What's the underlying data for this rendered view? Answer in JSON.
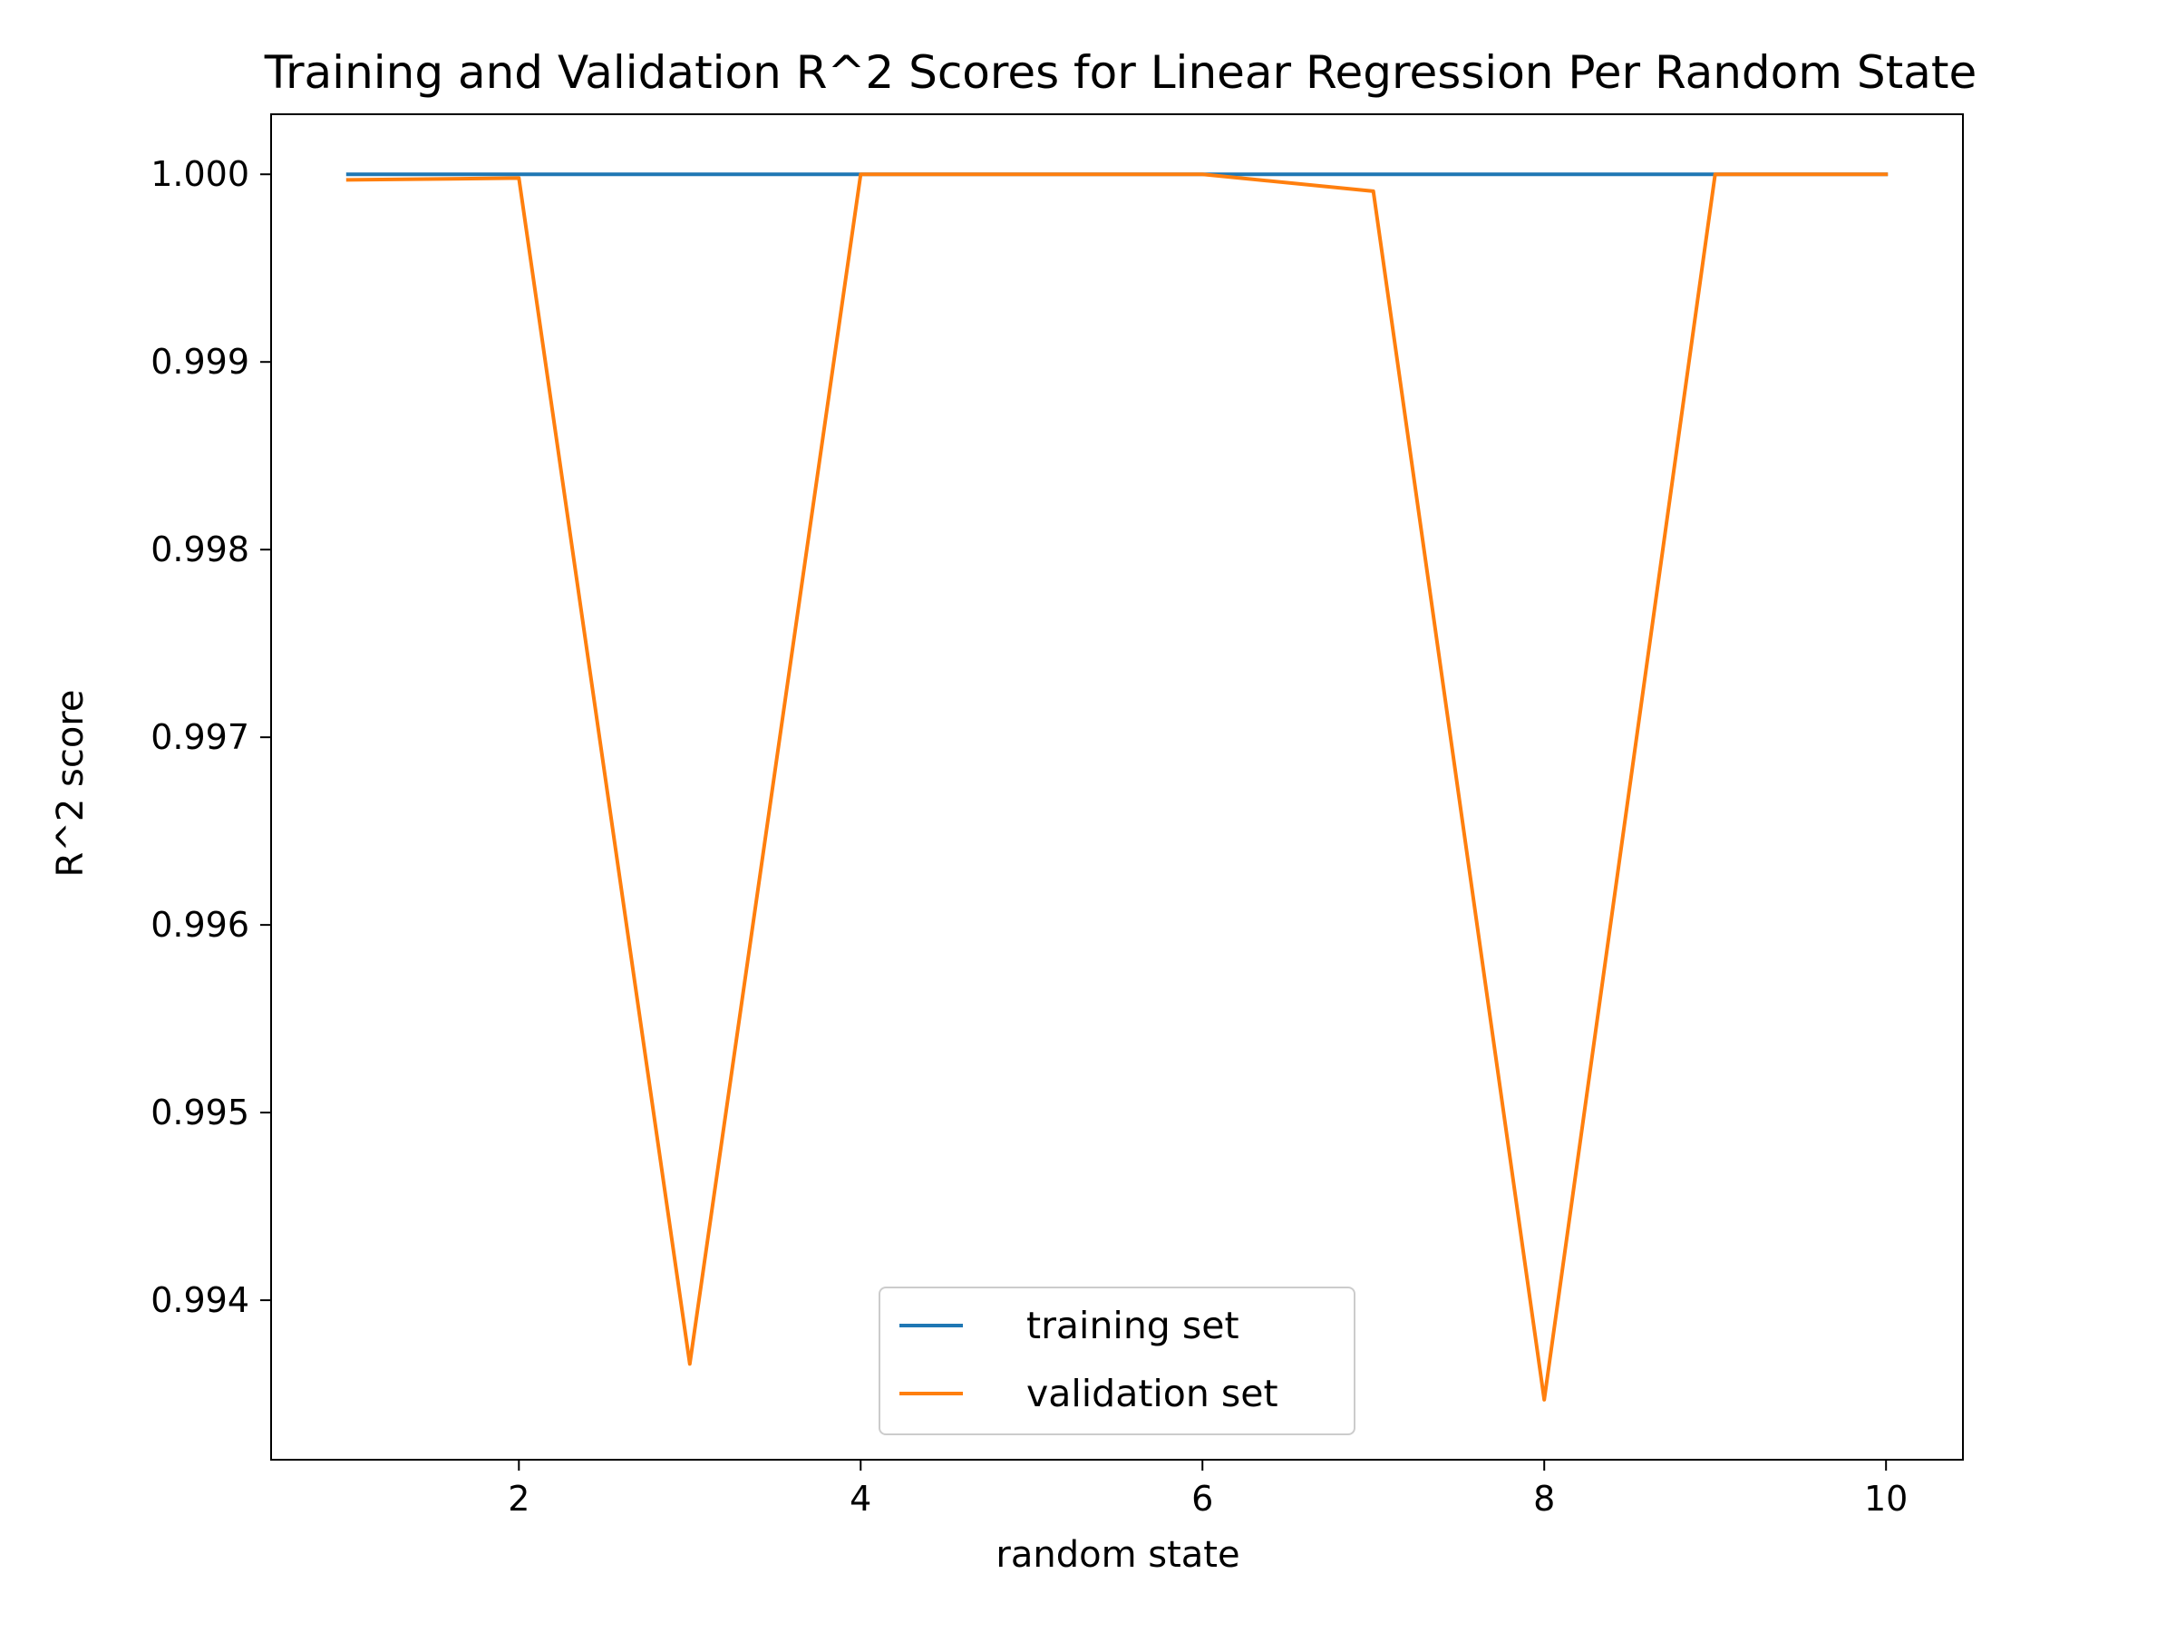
{
  "chart_data": {
    "type": "line",
    "title": "Training and Validation R^2 Scores for Linear Regression Per Random State",
    "xlabel": "random state",
    "ylabel": "R^2 score",
    "x": [
      1,
      2,
      3,
      4,
      5,
      6,
      7,
      8,
      9,
      10
    ],
    "xlim": [
      0.55,
      10.45
    ],
    "ylim": [
      0.99315,
      1.00032
    ],
    "xticks": [
      2,
      4,
      6,
      8,
      10
    ],
    "xtick_labels": [
      "2",
      "4",
      "6",
      "8",
      "10"
    ],
    "yticks": [
      0.994,
      0.995,
      0.996,
      0.997,
      0.998,
      0.999,
      1.0
    ],
    "ytick_labels": [
      "0.994",
      "0.995",
      "0.996",
      "0.997",
      "0.998",
      "0.999",
      "1.000"
    ],
    "grid": false,
    "legend_position": "bottom-center",
    "series": [
      {
        "name": "training set",
        "color": "#1f77b4",
        "values": [
          1.0,
          1.0,
          1.0,
          1.0,
          1.0,
          1.0,
          1.0,
          1.0,
          1.0,
          1.0
        ]
      },
      {
        "name": "validation set",
        "color": "#ff7f0e",
        "values": [
          0.99997,
          0.99998,
          0.99366,
          1.0,
          1.0,
          1.0,
          0.99991,
          0.99347,
          1.0,
          1.0
        ]
      }
    ]
  }
}
